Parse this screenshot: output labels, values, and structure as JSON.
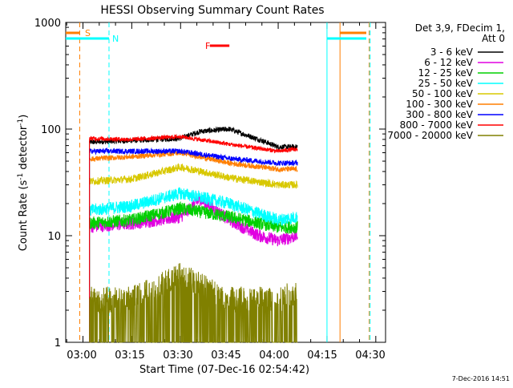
{
  "chart_data": {
    "type": "line",
    "title": "HESSI Observing Summary Count Rates",
    "xlabel": "Start Time (07-Dec-16 02:54:42)",
    "ylabel_main": "Count Rate (s",
    "ylabel_sup1": "-1",
    "ylabel_mid": " detector",
    "ylabel_sup2": "-1",
    "ylabel_end": ")",
    "y_scale": "log",
    "ylim": [
      1,
      1000
    ],
    "xlim": [
      "02:54:42",
      "04:33:00"
    ],
    "x_tick_labels": [
      "03:00",
      "03:15",
      "03:30",
      "03:45",
      "04:00",
      "04:15",
      "04:30"
    ],
    "y_tick_labels": [
      "1",
      "10",
      "100",
      "1000"
    ],
    "legend_placement": "top-right",
    "legend_header": [
      "Det 3,9, FDecim 1,",
      "Att 0"
    ],
    "footer_date": "7-Dec-2016 14:51",
    "series": [
      {
        "name": "3 - 6 keV",
        "color": "#000000",
        "values": [
          [
            3.0,
            75
          ],
          [
            3.25,
            78
          ],
          [
            3.5,
            82
          ],
          [
            3.6,
            95
          ],
          [
            3.75,
            100
          ],
          [
            3.9,
            80
          ],
          [
            4.0,
            68
          ],
          [
            4.1,
            68
          ]
        ]
      },
      {
        "name": "6 - 12 keV",
        "color": "#e000e0",
        "values": [
          [
            3.0,
            12
          ],
          [
            3.25,
            13
          ],
          [
            3.5,
            15
          ],
          [
            3.6,
            22
          ],
          [
            3.75,
            14
          ],
          [
            3.9,
            10
          ],
          [
            4.0,
            9
          ],
          [
            4.1,
            10
          ]
        ]
      },
      {
        "name": "12 - 25 keV",
        "color": "#00d000",
        "values": [
          [
            3.0,
            13
          ],
          [
            3.25,
            14
          ],
          [
            3.5,
            18
          ],
          [
            3.75,
            15
          ],
          [
            4.0,
            12
          ],
          [
            4.1,
            12
          ]
        ]
      },
      {
        "name": "25 - 50 keV",
        "color": "#00ffff",
        "values": [
          [
            3.0,
            17
          ],
          [
            3.25,
            19
          ],
          [
            3.5,
            25
          ],
          [
            3.75,
            20
          ],
          [
            4.0,
            14
          ],
          [
            4.1,
            15
          ]
        ]
      },
      {
        "name": "50 - 100 keV",
        "color": "#d8c800",
        "values": [
          [
            3.0,
            32
          ],
          [
            3.25,
            34
          ],
          [
            3.5,
            44
          ],
          [
            3.75,
            35
          ],
          [
            4.0,
            30
          ],
          [
            4.1,
            30
          ]
        ]
      },
      {
        "name": "100 - 300 keV",
        "color": "#ff7f00",
        "values": [
          [
            3.0,
            52
          ],
          [
            3.25,
            55
          ],
          [
            3.5,
            60
          ],
          [
            3.75,
            48
          ],
          [
            4.0,
            42
          ],
          [
            4.1,
            42
          ]
        ]
      },
      {
        "name": "300 - 800 keV",
        "color": "#0000ff",
        "values": [
          [
            3.0,
            62
          ],
          [
            3.25,
            62
          ],
          [
            3.5,
            62
          ],
          [
            3.75,
            53
          ],
          [
            4.0,
            48
          ],
          [
            4.1,
            48
          ]
        ]
      },
      {
        "name": "800 - 7000 keV",
        "color": "#ff0000",
        "values": [
          [
            3.0,
            82
          ],
          [
            3.25,
            80
          ],
          [
            3.5,
            85
          ],
          [
            3.75,
            72
          ],
          [
            4.0,
            62
          ],
          [
            4.1,
            65
          ]
        ]
      },
      {
        "name": "7000 - 20000 keV",
        "color": "#808000",
        "values": [
          [
            3.0,
            2.5
          ],
          [
            3.25,
            2.5
          ],
          [
            3.5,
            4.2
          ],
          [
            3.75,
            2.5
          ],
          [
            4.0,
            2.6
          ],
          [
            4.1,
            2.8
          ]
        ]
      }
    ],
    "markers": [
      {
        "label": "S",
        "color": "#ff7f00",
        "kind": "range"
      },
      {
        "label": "N",
        "color": "#00ffff",
        "kind": "range"
      },
      {
        "label": "F",
        "color": "#ff0000",
        "kind": "bar"
      }
    ]
  }
}
